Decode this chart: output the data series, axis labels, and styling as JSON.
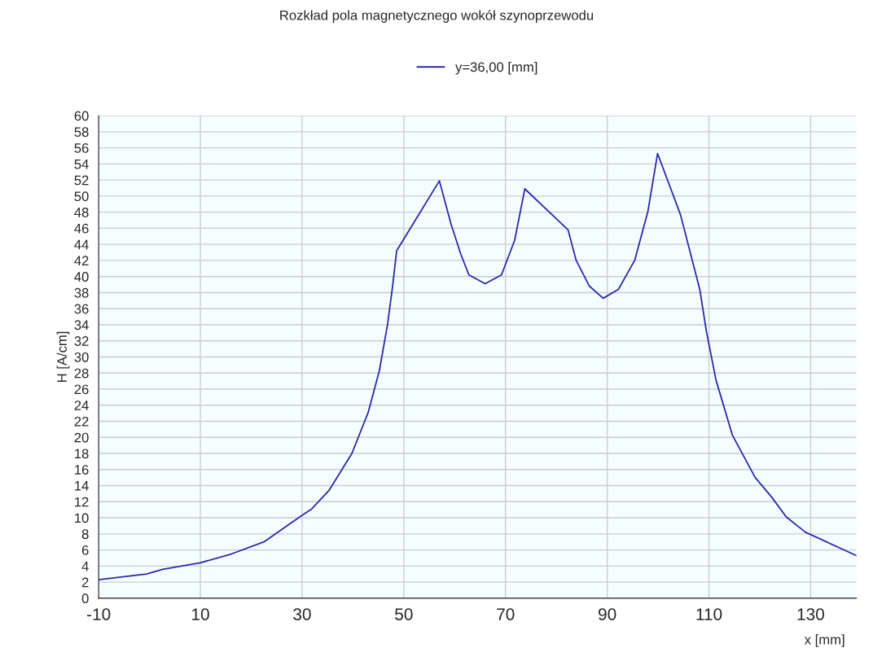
{
  "chart_data": {
    "type": "line",
    "title": "Rozkład pola magnetycznego wokół szynoprzewodu",
    "xlabel": "x [mm]",
    "ylabel": "H [A/cm]",
    "xlim": [
      -10,
      139
    ],
    "xticks": [
      -10,
      10,
      30,
      50,
      70,
      90,
      110,
      130
    ],
    "ylim": [
      0,
      60
    ],
    "yticks": [
      0,
      2,
      4,
      6,
      8,
      10,
      12,
      14,
      16,
      18,
      20,
      22,
      24,
      26,
      28,
      30,
      32,
      34,
      36,
      38,
      40,
      42,
      44,
      46,
      48,
      50,
      52,
      54,
      56,
      58,
      60
    ],
    "grid": true,
    "legend": "top",
    "marker": "none",
    "line_style": "solid",
    "series": [
      {
        "name": "y=36,00 [mm]",
        "color": "#2a2aaa",
        "x": [
          -10,
          -0.6,
          2.6,
          10,
          16.1,
          22.5,
          30,
          31.9,
          35.3,
          39.8,
          43,
          45.2,
          46.8,
          47.8,
          48.6,
          57,
          59.3,
          61.2,
          62.8,
          66,
          69.2,
          71.8,
          73.8,
          82.3,
          83.9,
          86.5,
          89.2,
          92.2,
          95.4,
          98,
          99.9,
          104.4,
          108.2,
          109.5,
          111.4,
          114.6,
          119.1,
          122.3,
          125.2,
          129,
          139
        ],
        "values": [
          2.3,
          3.0,
          3.6,
          4.4,
          5.5,
          7.0,
          10.3,
          11.1,
          13.4,
          18.0,
          23.1,
          28.3,
          34.0,
          38.8,
          43.2,
          51.9,
          46.5,
          42.8,
          40.2,
          39.1,
          40.2,
          44.5,
          50.9,
          45.8,
          42.0,
          38.8,
          37.3,
          38.4,
          42.0,
          48.1,
          55.3,
          47.7,
          38.4,
          33.2,
          27.1,
          20.3,
          15.0,
          12.6,
          10.1,
          8.2,
          5.3
        ]
      }
    ]
  }
}
